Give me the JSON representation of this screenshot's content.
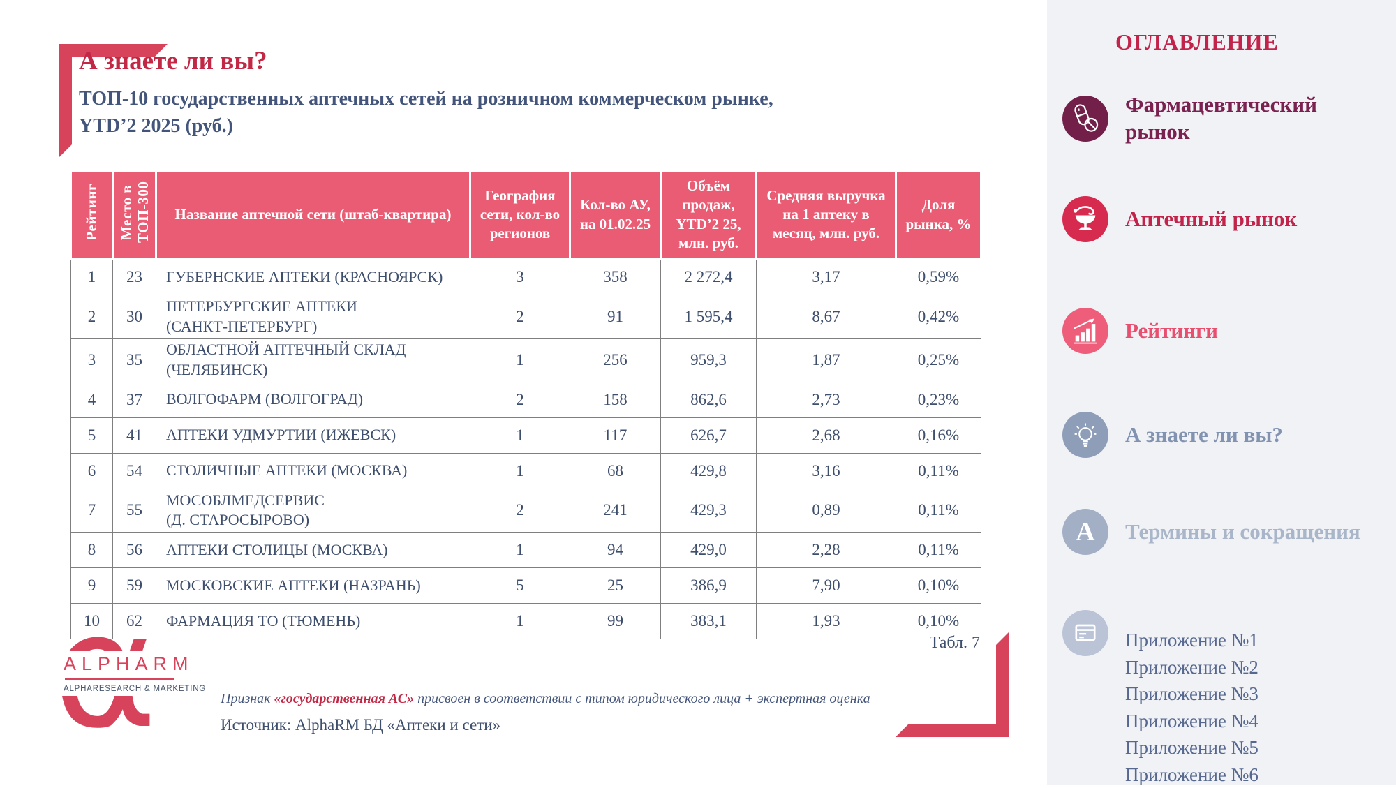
{
  "main": {
    "title": "А знаете ли вы?",
    "subtitle": "ТОП-10 государственных аптечных сетей на розничном коммерческом рынке,\nYTD’2 2025 (руб.)",
    "table_caption": "Табл. 7",
    "footnote": {
      "prefix": "Признак ",
      "highlight": "«государственная АС»",
      "suffix": " присвоен в соответствии с типом юридического лица + экспертная оценка"
    },
    "source": "Источник: AlphaRM БД «Аптеки и сети»",
    "logo": {
      "wordmark": "ALPHARM",
      "tagline": "ALPHARESEARCH & MARKETING",
      "alpha_glyph": "α"
    }
  },
  "table": {
    "headers": [
      "Рейтинг",
      "Место в ТОП-300",
      "Название аптечной сети (штаб-квартира)",
      "География сети, кол-во регионов",
      "Кол-во АУ, на 01.02.25",
      "Объём продаж, YTD’2 25, млн. руб.",
      "Средняя выручка на 1 аптеку в месяц, млн. руб.",
      "Доля рынка, %"
    ],
    "col_keys": [
      "rank",
      "top300-place",
      "chain-name",
      "geography-regions",
      "pharmacy-count",
      "sales-volume",
      "avg-revenue-per-pharmacy",
      "market-share"
    ],
    "rows": [
      [
        "1",
        "23",
        "ГУБЕРНСКИЕ АПТЕКИ (КРАСНОЯРСК)",
        "3",
        "358",
        "2 272,4",
        "3,17",
        "0,59%"
      ],
      [
        "2",
        "30",
        "ПЕТЕРБУРГСКИЕ АПТЕКИ\n(САНКТ-ПЕТЕРБУРГ)",
        "2",
        "91",
        "1 595,4",
        "8,67",
        "0,42%"
      ],
      [
        "3",
        "35",
        "ОБЛАСТНОЙ АПТЕЧНЫЙ СКЛАД\n(ЧЕЛЯБИНСК)",
        "1",
        "256",
        "959,3",
        "1,87",
        "0,25%"
      ],
      [
        "4",
        "37",
        "ВОЛГОФАРМ (ВОЛГОГРАД)",
        "2",
        "158",
        "862,6",
        "2,73",
        "0,23%"
      ],
      [
        "5",
        "41",
        "АПТЕКИ УДМУРТИИ (ИЖЕВСК)",
        "1",
        "117",
        "626,7",
        "2,68",
        "0,16%"
      ],
      [
        "6",
        "54",
        "СТОЛИЧНЫЕ АПТЕКИ (МОСКВА)",
        "1",
        "68",
        "429,8",
        "3,16",
        "0,11%"
      ],
      [
        "7",
        "55",
        "МОСОБЛМЕДСЕРВИС\n(Д. СТАРОСЫРОВО)",
        "2",
        "241",
        "429,3",
        "0,89",
        "0,11%"
      ],
      [
        "8",
        "56",
        "АПТЕКИ СТОЛИЦЫ (МОСКВА)",
        "1",
        "94",
        "429,0",
        "2,28",
        "0,11%"
      ],
      [
        "9",
        "59",
        "МОСКОВСКИЕ АПТЕКИ (НАЗРАНЬ)",
        "5",
        "25",
        "386,9",
        "7,90",
        "0,10%"
      ],
      [
        "10",
        "62",
        "ФАРМАЦИЯ ТО (ТЮМЕНЬ)",
        "1",
        "99",
        "383,1",
        "1,93",
        "0,10%"
      ]
    ]
  },
  "sidebar": {
    "title": "ОГЛАВЛЕНИЕ",
    "items": [
      {
        "label": "Фармацевтический рынок",
        "icon": "pills-icon"
      },
      {
        "label": "Аптечный рынок",
        "icon": "hygieia-bowl-icon"
      },
      {
        "label": "Рейтинги",
        "icon": "bar-chart-icon"
      },
      {
        "label": "А знаете ли вы?",
        "icon": "lightbulb-icon"
      },
      {
        "label": "Термины и сокращения",
        "icon": "letter-a-icon"
      }
    ],
    "appendix_icon": "appendix-card-icon",
    "appendices": [
      "Приложение №1",
      "Приложение №2",
      "Приложение №3",
      "Приложение №4",
      "Приложение №5",
      "Приложение №6"
    ],
    "letter_a_glyph": "A"
  },
  "colors": {
    "accent_crimson": "#d8435c",
    "title_red": "#c22845",
    "heading_navy": "#44557c",
    "table_header_pink": "#e95c74",
    "table_text": "#3e4e6d",
    "sidebar_bg": "#f1f2f6",
    "maroon": "#72204a",
    "muted_blue": "#8e9db8"
  }
}
